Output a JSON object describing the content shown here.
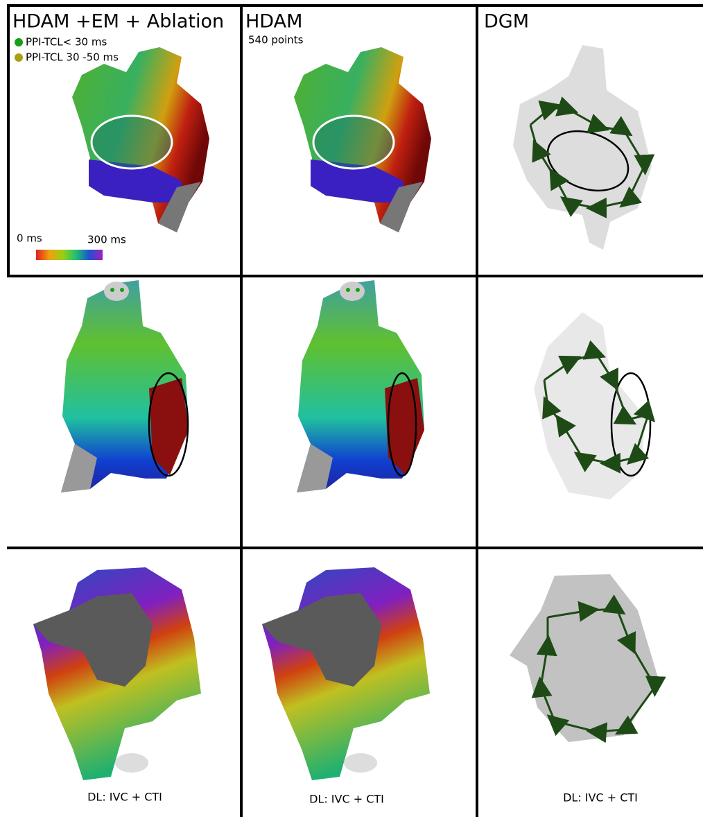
{
  "panels": [
    {
      "title": "HDAM +EM + Ablation",
      "legend": [
        {
          "label": "PPI-TCL< 30 ms",
          "color": "#16a016"
        },
        {
          "label": "PPI-TCL 30 -50 ms",
          "color": "#a8a010"
        }
      ],
      "colorbar": {
        "min_label": "0 ms",
        "max_label": "300 ms"
      }
    },
    {
      "title": "HDAM",
      "subtitle": "540 points"
    },
    {
      "title": "DGM"
    }
  ],
  "captions": [
    "DL: IVC + CTI",
    "DL: IVC + CTI",
    "DL: IVC + CTI"
  ]
}
